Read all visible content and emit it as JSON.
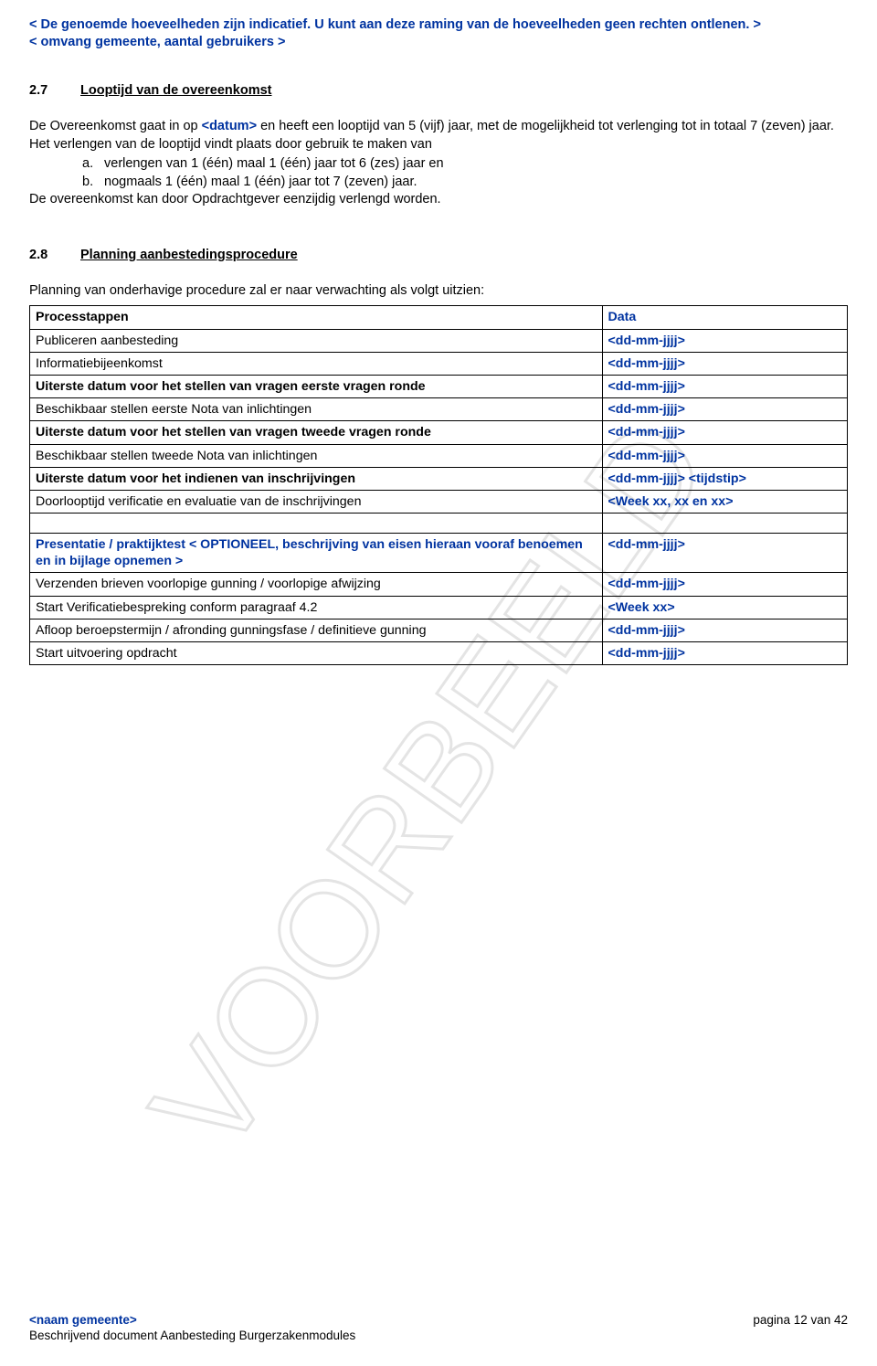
{
  "colors": {
    "blue": "#0033a0",
    "black": "#000000",
    "watermark": "#e4e4e4",
    "bg": "#ffffff"
  },
  "intro": {
    "line1": "< De genoemde hoeveelheden zijn indicatief. U kunt aan deze raming van de hoeveelheden geen rechten ontlenen. >",
    "line2": "< omvang gemeente, aantal gebruikers >"
  },
  "section27": {
    "num": "2.7",
    "title": "Looptijd van de overeenkomst",
    "para1a": "De Overeenkomst gaat in op ",
    "para1_datum": "<datum>",
    "para1b": " en heeft een looptijd van 5 (vijf) jaar, met de mogelijkheid tot verlenging tot in totaal 7 (zeven) jaar. Het verlengen van de looptijd vindt plaats door gebruik te maken van",
    "item_a_label": "a.",
    "item_a": "verlengen van 1 (één) maal 1 (één) jaar tot 6 (zes) jaar en",
    "item_b_label": "b.",
    "item_b": "nogmaals 1 (één) maal 1 (één) jaar tot 7 (zeven) jaar.",
    "para2": "De overeenkomst kan door Opdrachtgever eenzijdig verlengd worden."
  },
  "section28": {
    "num": "2.8",
    "title": "Planning aanbestedingsprocedure",
    "lead": "Planning van onderhavige procedure zal er naar verwachting als volgt uitzien:"
  },
  "table": {
    "header_col1": "Processtappen",
    "header_col2": "Data",
    "rows": [
      {
        "c1_bold": false,
        "c1_blue": false,
        "c2_blue": true,
        "c1": "Publiceren aanbesteding",
        "c2": "<dd-mm-jjjj>"
      },
      {
        "c1_bold": false,
        "c1_blue": false,
        "c2_blue": true,
        "c1": "Informatiebijeenkomst",
        "c2": "<dd-mm-jjjj>"
      },
      {
        "c1_bold": true,
        "c1_blue": false,
        "c2_blue": true,
        "c1": "Uiterste datum voor het stellen van vragen eerste vragen ronde",
        "c2": "<dd-mm-jjjj>"
      },
      {
        "c1_bold": false,
        "c1_blue": false,
        "c2_blue": true,
        "c1": "Beschikbaar stellen eerste Nota van inlichtingen",
        "c2": "<dd-mm-jjjj>"
      },
      {
        "c1_bold": true,
        "c1_blue": false,
        "c2_blue": true,
        "c1": "Uiterste datum voor het stellen van vragen tweede vragen ronde",
        "c2": "<dd-mm-jjjj>"
      },
      {
        "c1_bold": false,
        "c1_blue": false,
        "c2_blue": true,
        "c1": "Beschikbaar stellen tweede Nota van inlichtingen",
        "c2": "<dd-mm-jjjj>"
      },
      {
        "c1_bold": true,
        "c1_blue": false,
        "c2_blue": true,
        "c1": "Uiterste datum voor het indienen van inschrijvingen",
        "c2": "<dd-mm-jjjj> <tijdstip>"
      },
      {
        "c1_bold": false,
        "c1_blue": false,
        "c2_blue": true,
        "c1": "Doorlooptijd verificatie en evaluatie van de inschrijvingen",
        "c2": "<Week xx, xx en xx>"
      },
      {
        "empty": true
      },
      {
        "c1_bold": true,
        "c1_blue": true,
        "c2_blue": true,
        "c1": "Presentatie / praktijktest < OPTIONEEL, beschrijving van eisen hieraan vooraf benoemen en in bijlage opnemen >",
        "c2": "<dd-mm-jjjj>"
      },
      {
        "c1_bold": false,
        "c1_blue": false,
        "c2_blue": true,
        "c1": "Verzenden brieven voorlopige gunning / voorlopige afwijzing",
        "c2": "<dd-mm-jjjj>"
      },
      {
        "c1_bold": false,
        "c1_blue": false,
        "c2_blue": true,
        "c1": "Start Verificatiebespreking conform paragraaf 4.2",
        "c2": "<Week xx>"
      },
      {
        "c1_bold": false,
        "c1_blue": false,
        "c2_blue": true,
        "c1": "Afloop beroepstermijn / afronding gunningsfase / definitieve gunning",
        "c2": "<dd-mm-jjjj>"
      },
      {
        "c1_bold": false,
        "c1_blue": false,
        "c2_blue": true,
        "c1": "Start uitvoering opdracht",
        "c2": "<dd-mm-jjjj>"
      }
    ]
  },
  "footer": {
    "left_top": "<naam gemeente>",
    "right": "pagina 12 van 42",
    "left_bottom": "Beschrijvend document Aanbesteding Burgerzakenmodules"
  },
  "watermark_text": "VOORBEELD"
}
